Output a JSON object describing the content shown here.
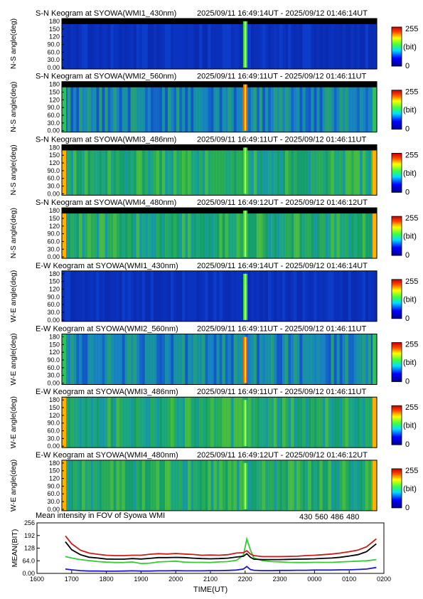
{
  "keograms": [
    {
      "title": "S-N Keogram at SYOWA(WMI1_430nm)",
      "time_range": "2025/09/11 16:49:14UT - 2025/09/12 01:46:14UT",
      "ylabel": "N-S angle(deg)",
      "base": "dark",
      "spike": "medium"
    },
    {
      "title": "S-N Keogram at SYOWA(WMI2_560nm)",
      "time_range": "2025/09/11 16:49:11UT - 2025/09/12 01:46:11UT",
      "ylabel": "N-S angle(deg)",
      "base": "mid",
      "spike": "strong"
    },
    {
      "title": "S-N Keogram at SYOWA(WMI3_486nm)",
      "time_range": "2025/09/11 16:49:11UT - 2025/09/12 01:46:11UT",
      "ylabel": "N-S angle(deg)",
      "base": "bright",
      "spike": "weak"
    },
    {
      "title": "S-N Keogram at SYOWA(WMI4_480nm)",
      "time_range": "2025/09/11 16:49:12UT - 2025/09/12 01:46:12UT",
      "ylabel": "N-S angle(deg)",
      "base": "bright",
      "spike": "weak"
    },
    {
      "title": "E-W Keogram at SYOWA(WMI1_430nm)",
      "time_range": "2025/09/11 16:49:14UT - 2025/09/12 01:46:14UT",
      "ylabel": "W-E angle(deg)",
      "base": "dark",
      "spike": "medium"
    },
    {
      "title": "E-W Keogram at SYOWA(WMI2_560nm)",
      "time_range": "2025/09/11 16:49:11UT - 2025/09/12 01:46:11UT",
      "ylabel": "W-E angle(deg)",
      "base": "mid",
      "spike": "strong"
    },
    {
      "title": "E-W Keogram at SYOWA(WMI3_486nm)",
      "time_range": "2025/09/11 16:49:11UT - 2025/09/12 01:46:11UT",
      "ylabel": "W-E angle(deg)",
      "base": "bright",
      "spike": "weak"
    },
    {
      "title": "E-W Keogram at SYOWA(WMI4_480nm)",
      "time_range": "2025/09/11 16:49:12UT - 2025/09/12 01:46:12UT",
      "ylabel": "W-E angle(deg)",
      "base": "bright",
      "spike": "weak"
    }
  ],
  "keogram_yticks": [
    "180",
    "150",
    "120",
    "90.0",
    "60.0",
    "30.0",
    "0.00"
  ],
  "colorbar": {
    "max_label": "255",
    "unit_label": "(bit)",
    "min_label": "0"
  },
  "chart_data": {
    "type": "line",
    "title": "Mean intensity in FOV of Syowa WMI",
    "xlabel": "TIME(UT)",
    "ylabel": "MEAN(BIT)",
    "x_ticks": [
      "1600",
      "1700",
      "1800",
      "1900",
      "2000",
      "2100",
      "2200",
      "2300",
      "0000",
      "0100",
      "0200"
    ],
    "y_ticks": [
      "256",
      "192",
      "128",
      "64.0",
      "0.00"
    ],
    "ylim": [
      0,
      256
    ],
    "xlim_hours": [
      16.0,
      26.0
    ],
    "x_hours": [
      16.82,
      17.0,
      17.25,
      17.5,
      17.75,
      18.0,
      18.25,
      18.5,
      18.75,
      19.0,
      19.25,
      19.5,
      19.75,
      20.0,
      20.25,
      20.5,
      20.75,
      21.0,
      21.25,
      21.5,
      21.75,
      21.95,
      22.05,
      22.15,
      22.25,
      22.5,
      22.75,
      23.0,
      23.25,
      23.5,
      23.75,
      24.0,
      24.25,
      24.5,
      24.75,
      25.0,
      25.25,
      25.5,
      25.78
    ],
    "series": [
      {
        "name": "430",
        "color": "#1a1acc",
        "values": [
          22,
          18,
          14,
          12,
          12,
          11,
          11,
          12,
          13,
          12,
          12,
          13,
          13,
          14,
          13,
          13,
          13,
          14,
          14,
          15,
          17,
          22,
          35,
          20,
          16,
          14,
          14,
          15,
          15,
          16,
          16,
          17,
          17,
          17,
          18,
          18,
          20,
          22,
          30
        ]
      },
      {
        "name": "560",
        "color": "#33cc33",
        "values": [
          85,
          78,
          70,
          65,
          60,
          57,
          55,
          55,
          58,
          50,
          52,
          58,
          60,
          62,
          57,
          56,
          56,
          55,
          58,
          60,
          66,
          92,
          175,
          120,
          78,
          65,
          60,
          58,
          56,
          55,
          55,
          56,
          56,
          56,
          58,
          60,
          62,
          64,
          70
        ]
      },
      {
        "name": "486",
        "color": "#cc1a1a",
        "values": [
          190,
          150,
          118,
          103,
          97,
          92,
          90,
          90,
          92,
          92,
          97,
          100,
          98,
          101,
          98,
          96,
          92,
          93,
          92,
          95,
          103,
          105,
          115,
          98,
          90,
          85,
          85,
          85,
          86,
          87,
          90,
          92,
          95,
          98,
          103,
          110,
          118,
          135,
          175
        ]
      },
      {
        "name": "480",
        "color": "#000000",
        "values": [
          160,
          120,
          95,
          82,
          78,
          73,
          72,
          72,
          75,
          73,
          76,
          80,
          80,
          81,
          80,
          77,
          75,
          74,
          75,
          77,
          83,
          87,
          100,
          82,
          72,
          70,
          70,
          70,
          71,
          72,
          73,
          74,
          76,
          78,
          82,
          88,
          95,
          110,
          150
        ]
      }
    ]
  }
}
